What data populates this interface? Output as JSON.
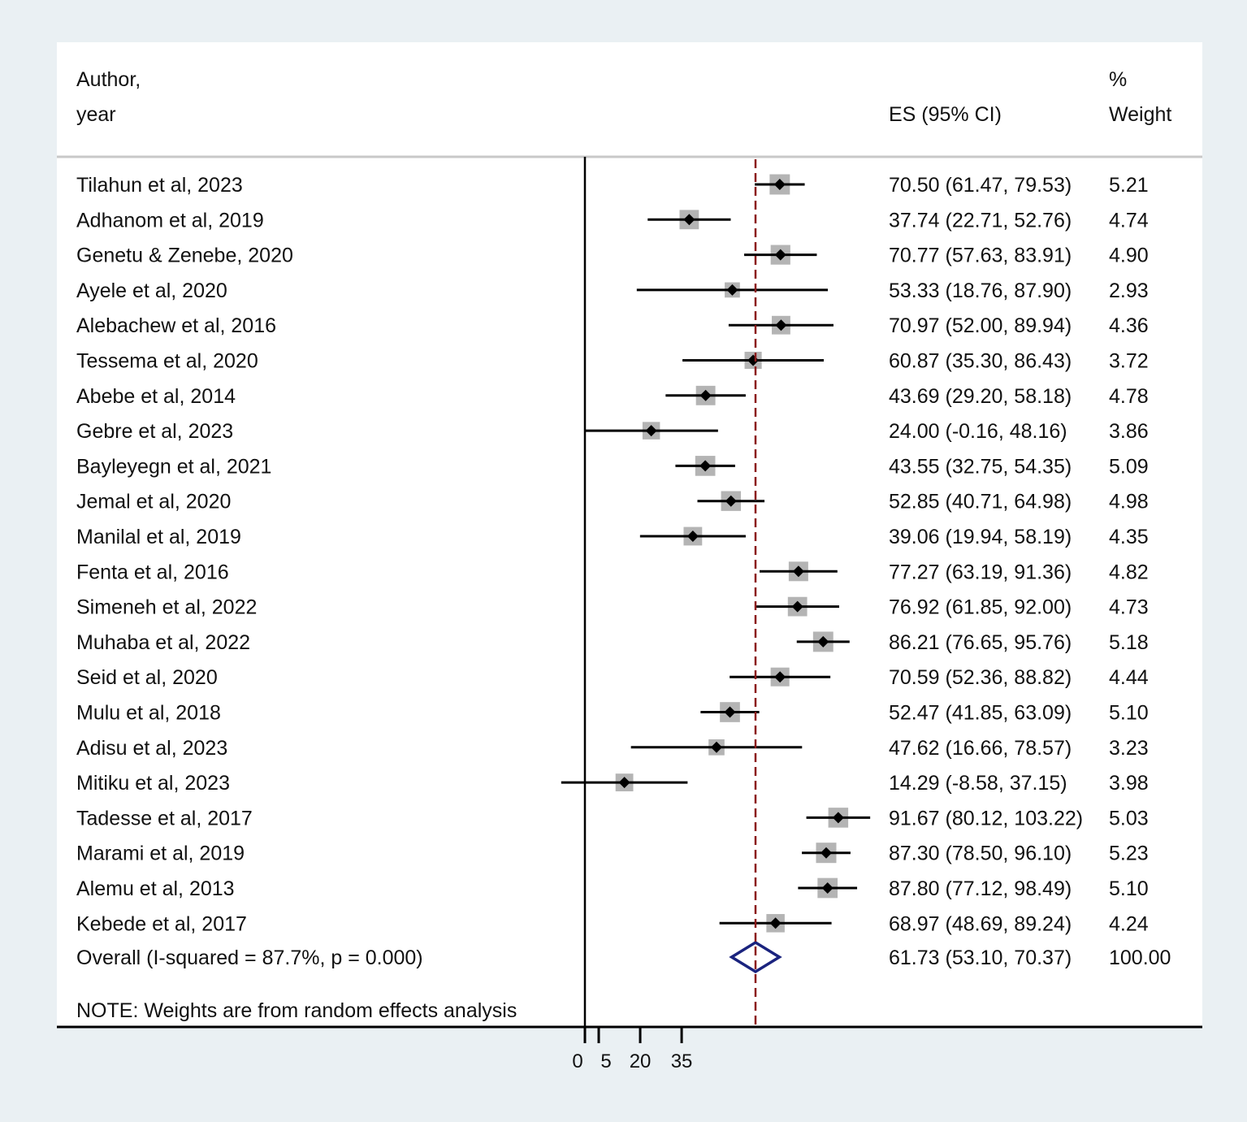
{
  "chart_data": {
    "type": "forest",
    "headers": {
      "author_line1": "Author,",
      "author_line2": "year",
      "es": "ES (95% CI)",
      "weight_line1": "%",
      "weight_line2": "Weight"
    },
    "studies": [
      {
        "label": "Tilahun et al, 2023",
        "es": 70.5,
        "lo": 61.47,
        "hi": 79.53,
        "weight": 5.21,
        "es_text": "70.50 (61.47, 79.53)",
        "weight_text": "5.21"
      },
      {
        "label": "Adhanom et al, 2019",
        "es": 37.74,
        "lo": 22.71,
        "hi": 52.76,
        "weight": 4.74,
        "es_text": "37.74 (22.71, 52.76)",
        "weight_text": "4.74"
      },
      {
        "label": "Genetu & Zenebe, 2020",
        "es": 70.77,
        "lo": 57.63,
        "hi": 83.91,
        "weight": 4.9,
        "es_text": "70.77 (57.63, 83.91)",
        "weight_text": "4.90"
      },
      {
        "label": "Ayele et al, 2020",
        "es": 53.33,
        "lo": 18.76,
        "hi": 87.9,
        "weight": 2.93,
        "es_text": "53.33 (18.76, 87.90)",
        "weight_text": "2.93"
      },
      {
        "label": "Alebachew et al, 2016",
        "es": 70.97,
        "lo": 52.0,
        "hi": 89.94,
        "weight": 4.36,
        "es_text": "70.97 (52.00, 89.94)",
        "weight_text": "4.36"
      },
      {
        "label": "Tessema et al, 2020",
        "es": 60.87,
        "lo": 35.3,
        "hi": 86.43,
        "weight": 3.72,
        "es_text": "60.87 (35.30, 86.43)",
        "weight_text": "3.72"
      },
      {
        "label": "Abebe et al, 2014",
        "es": 43.69,
        "lo": 29.2,
        "hi": 58.18,
        "weight": 4.78,
        "es_text": "43.69 (29.20, 58.18)",
        "weight_text": "4.78"
      },
      {
        "label": "Gebre et al, 2023",
        "es": 24.0,
        "lo": -0.16,
        "hi": 48.16,
        "weight": 3.86,
        "es_text": "24.00 (-0.16, 48.16)",
        "weight_text": "3.86"
      },
      {
        "label": "Bayleyegn et al, 2021",
        "es": 43.55,
        "lo": 32.75,
        "hi": 54.35,
        "weight": 5.09,
        "es_text": "43.55 (32.75, 54.35)",
        "weight_text": "5.09"
      },
      {
        "label": "Jemal et al, 2020",
        "es": 52.85,
        "lo": 40.71,
        "hi": 64.98,
        "weight": 4.98,
        "es_text": "52.85 (40.71, 64.98)",
        "weight_text": "4.98"
      },
      {
        "label": "Manilal et al, 2019",
        "es": 39.06,
        "lo": 19.94,
        "hi": 58.19,
        "weight": 4.35,
        "es_text": "39.06 (19.94, 58.19)",
        "weight_text": "4.35"
      },
      {
        "label": "Fenta et al, 2016",
        "es": 77.27,
        "lo": 63.19,
        "hi": 91.36,
        "weight": 4.82,
        "es_text": "77.27 (63.19, 91.36)",
        "weight_text": "4.82"
      },
      {
        "label": "Simeneh et al, 2022",
        "es": 76.92,
        "lo": 61.85,
        "hi": 92.0,
        "weight": 4.73,
        "es_text": "76.92 (61.85, 92.00)",
        "weight_text": "4.73"
      },
      {
        "label": "Muhaba et al, 2022",
        "es": 86.21,
        "lo": 76.65,
        "hi": 95.76,
        "weight": 5.18,
        "es_text": "86.21 (76.65, 95.76)",
        "weight_text": "5.18"
      },
      {
        "label": "Seid et al, 2020",
        "es": 70.59,
        "lo": 52.36,
        "hi": 88.82,
        "weight": 4.44,
        "es_text": "70.59 (52.36, 88.82)",
        "weight_text": "4.44"
      },
      {
        "label": "Mulu et al, 2018",
        "es": 52.47,
        "lo": 41.85,
        "hi": 63.09,
        "weight": 5.1,
        "es_text": "52.47 (41.85, 63.09)",
        "weight_text": "5.10"
      },
      {
        "label": "Adisu et al, 2023",
        "es": 47.62,
        "lo": 16.66,
        "hi": 78.57,
        "weight": 3.23,
        "es_text": "47.62 (16.66, 78.57)",
        "weight_text": "3.23"
      },
      {
        "label": "Mitiku et al, 2023",
        "es": 14.29,
        "lo": -8.58,
        "hi": 37.15,
        "weight": 3.98,
        "es_text": "14.29 (-8.58, 37.15)",
        "weight_text": "3.98"
      },
      {
        "label": "Tadesse et al, 2017",
        "es": 91.67,
        "lo": 80.12,
        "hi": 103.22,
        "weight": 5.03,
        "es_text": "91.67 (80.12, 103.22)",
        "weight_text": "5.03"
      },
      {
        "label": "Marami et al, 2019",
        "es": 87.3,
        "lo": 78.5,
        "hi": 96.1,
        "weight": 5.23,
        "es_text": "87.30 (78.50, 96.10)",
        "weight_text": "5.23"
      },
      {
        "label": "Alemu et al, 2013",
        "es": 87.8,
        "lo": 77.12,
        "hi": 98.49,
        "weight": 5.1,
        "es_text": "87.80 (77.12, 98.49)",
        "weight_text": "5.10"
      },
      {
        "label": "Kebede et al, 2017",
        "es": 68.97,
        "lo": 48.69,
        "hi": 89.24,
        "weight": 4.24,
        "es_text": "68.97 (48.69, 89.24)",
        "weight_text": "4.24"
      }
    ],
    "overall": {
      "label": "Overall  (I-squared = 87.7%, p = 0.000)",
      "es": 61.73,
      "lo": 53.1,
      "hi": 70.37,
      "es_text": "61.73 (53.10, 70.37)",
      "weight_text": "100.00"
    },
    "note": "NOTE: Weights are from random effects analysis",
    "x_ticks": [
      0,
      5,
      20,
      35
    ],
    "x_tick_labels": [
      "0",
      "5",
      "20",
      "35"
    ],
    "null_line": 0,
    "colors": {
      "background": "#eaf0f3",
      "panel": "#ffffff",
      "box": "#b4b4b4",
      "ci": "#000000",
      "overall_diamond": "#1a237e",
      "overall_line": "#8b1a1a"
    }
  }
}
